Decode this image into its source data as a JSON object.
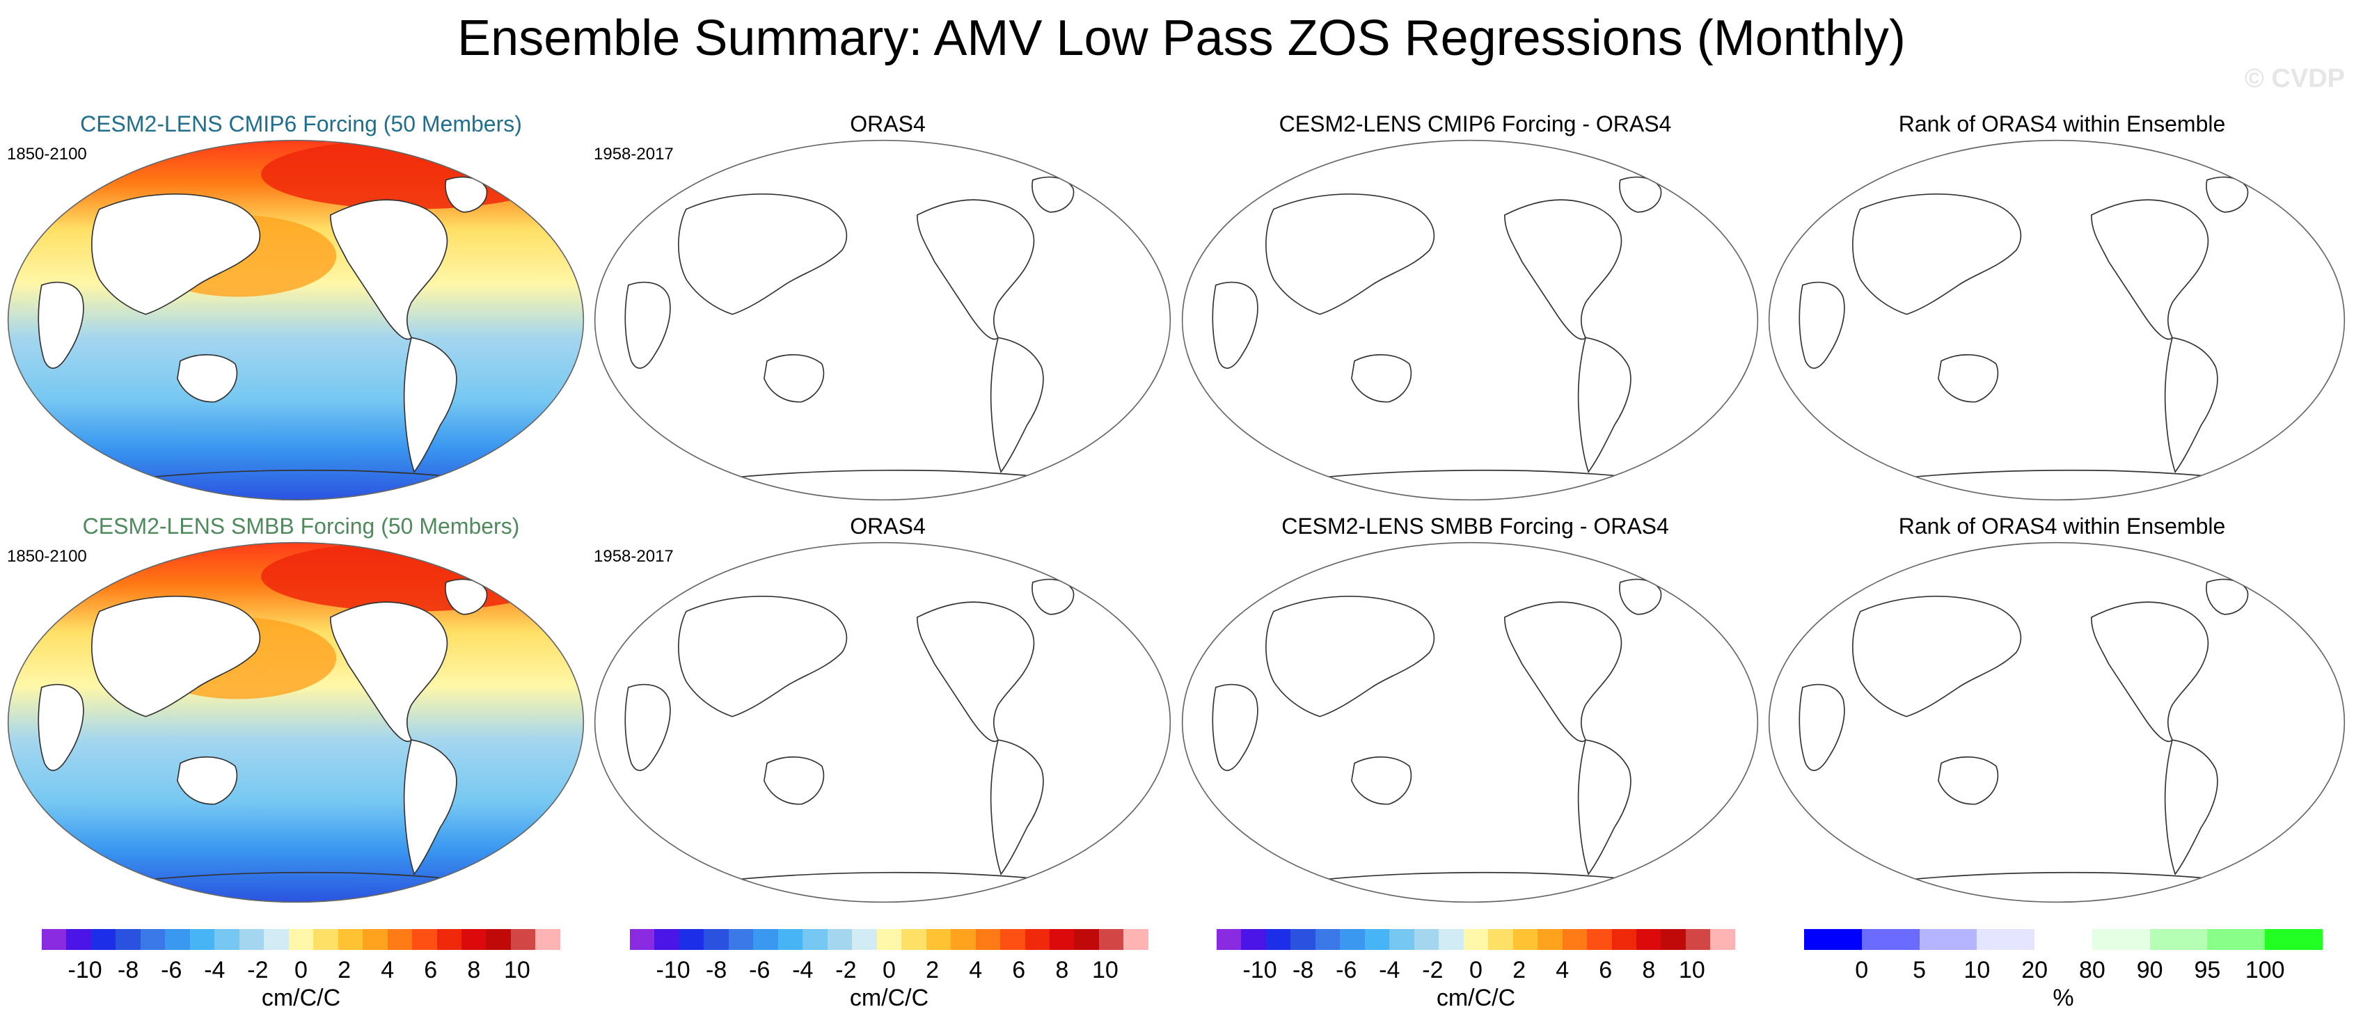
{
  "title": "Ensemble Summary: AMV Low Pass ZOS Regressions (Monthly)",
  "watermark": "© CVDP",
  "rows": [
    {
      "panels": [
        {
          "title": "CESM2-LENS CMIP6 Forcing (50 Members)",
          "title_color": "#1f6e8c",
          "years": "1850-2100",
          "filled": true
        },
        {
          "title": "ORAS4",
          "title_color": "#000000",
          "years": "1958-2017",
          "filled": false
        },
        {
          "title": "CESM2-LENS CMIP6 Forcing - ORAS4",
          "title_color": "#000000",
          "years": "",
          "filled": false
        },
        {
          "title": "Rank of ORAS4 within Ensemble",
          "title_color": "#000000",
          "years": "",
          "filled": false
        }
      ]
    },
    {
      "panels": [
        {
          "title": "CESM2-LENS SMBB Forcing (50 Members)",
          "title_color": "#4f8a5c",
          "years": "1850-2100",
          "filled": true
        },
        {
          "title": "ORAS4",
          "title_color": "#000000",
          "years": "1958-2017",
          "filled": false
        },
        {
          "title": "CESM2-LENS SMBB Forcing - ORAS4",
          "title_color": "#000000",
          "years": "",
          "filled": false
        },
        {
          "title": "Rank of ORAS4 within Ensemble",
          "title_color": "#000000",
          "years": "",
          "filled": false
        }
      ]
    }
  ],
  "colorbars": [
    {
      "units": "cm/C/C",
      "colors": [
        "#8a2be2",
        "#4b14e6",
        "#1c2ee8",
        "#2a52e0",
        "#3a78e8",
        "#3a98f0",
        "#46b4f5",
        "#76c8f2",
        "#a4d6ef",
        "#d2ecf5",
        "#fff7a8",
        "#ffe066",
        "#ffc232",
        "#ffa21e",
        "#ff7a14",
        "#ff5014",
        "#f0280a",
        "#dc0a0a",
        "#c00a0a",
        "#d24646",
        "#ffb4b4"
      ],
      "ticks": [
        "-10",
        "-8",
        "-6",
        "-4",
        "-2",
        "0",
        "2",
        "4",
        "6",
        "8",
        "10"
      ]
    },
    {
      "units": "cm/C/C",
      "colors": [
        "#8a2be2",
        "#4b14e6",
        "#1c2ee8",
        "#2a52e0",
        "#3a78e8",
        "#3a98f0",
        "#46b4f5",
        "#76c8f2",
        "#a4d6ef",
        "#d2ecf5",
        "#fff7a8",
        "#ffe066",
        "#ffc232",
        "#ffa21e",
        "#ff7a14",
        "#ff5014",
        "#f0280a",
        "#dc0a0a",
        "#c00a0a",
        "#d24646",
        "#ffb4b4"
      ],
      "ticks": [
        "-10",
        "-8",
        "-6",
        "-4",
        "-2",
        "0",
        "2",
        "4",
        "6",
        "8",
        "10"
      ]
    },
    {
      "units": "cm/C/C",
      "colors": [
        "#8a2be2",
        "#4b14e6",
        "#1c2ee8",
        "#2a52e0",
        "#3a78e8",
        "#3a98f0",
        "#46b4f5",
        "#76c8f2",
        "#a4d6ef",
        "#d2ecf5",
        "#fff7a8",
        "#ffe066",
        "#ffc232",
        "#ffa21e",
        "#ff7a14",
        "#ff5014",
        "#f0280a",
        "#dc0a0a",
        "#c00a0a",
        "#d24646",
        "#ffb4b4"
      ],
      "ticks": [
        "-10",
        "-8",
        "-6",
        "-4",
        "-2",
        "0",
        "2",
        "4",
        "6",
        "8",
        "10"
      ]
    },
    {
      "units": "%",
      "colors": [
        "#0000ff",
        "#6a6aff",
        "#b4b4ff",
        "#e4e4ff",
        "#ffffff",
        "#e4ffe4",
        "#b4ffb4",
        "#88ff88",
        "#22ff22"
      ],
      "ticks": [
        "0",
        "5",
        "10",
        "20",
        "80",
        "90",
        "95",
        "100"
      ]
    }
  ]
}
